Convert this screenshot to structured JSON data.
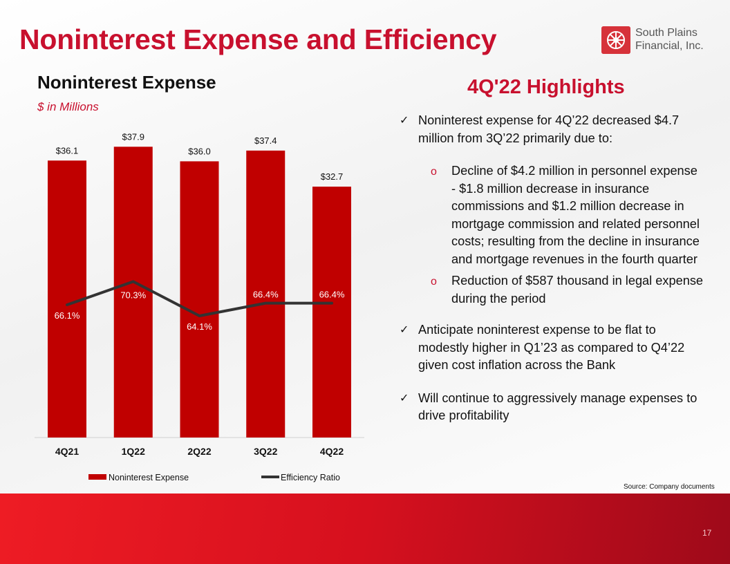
{
  "slide": {
    "title": "Noninterest Expense and Efficiency",
    "page_number": "17",
    "source": "Source: Company documents"
  },
  "logo": {
    "line1": "South Plains",
    "line2": "Financial, Inc."
  },
  "chart_header": {
    "title": "Noninterest Expense",
    "subtitle": "$ in Millions"
  },
  "chart_data": {
    "type": "bar",
    "categories": [
      "4Q21",
      "1Q22",
      "2Q22",
      "3Q22",
      "4Q22"
    ],
    "series": [
      {
        "name": "Noninterest Expense",
        "type": "bar",
        "values": [
          36.1,
          37.9,
          36.0,
          37.4,
          32.7
        ],
        "labels": [
          "$36.1",
          "$37.9",
          "$36.0",
          "$37.4",
          "$32.7"
        ],
        "color": "#c00000"
      },
      {
        "name": "Efficiency Ratio",
        "type": "line",
        "values": [
          66.1,
          70.3,
          64.1,
          66.4,
          66.4
        ],
        "labels": [
          "66.1%",
          "70.3%",
          "64.1%",
          "66.4%",
          "66.4%"
        ],
        "color": "#333333"
      }
    ],
    "legend_position": "bottom",
    "grid": false
  },
  "highlights": {
    "title": "4Q'22 Highlights",
    "items": [
      {
        "text": "Noninterest expense for 4Q’22 decreased $4.7 million from 3Q’22 primarily due to:",
        "subitems": [
          "Decline of $4.2 million in personnel expense - $1.8 million decrease in insurance commissions and $1.2 million decrease in mortgage commission and related personnel costs; resulting from the decline in insurance and mortgage revenues in the fourth quarter",
          "Reduction of $587 thousand in legal expense during the period"
        ]
      },
      {
        "text": "Anticipate noninterest expense to be flat to modestly higher in Q1’23 as compared to Q4’22 given cost inflation across the Bank",
        "subitems": []
      },
      {
        "text": "Will continue to aggressively manage expenses to drive profitability",
        "subitems": []
      }
    ]
  }
}
